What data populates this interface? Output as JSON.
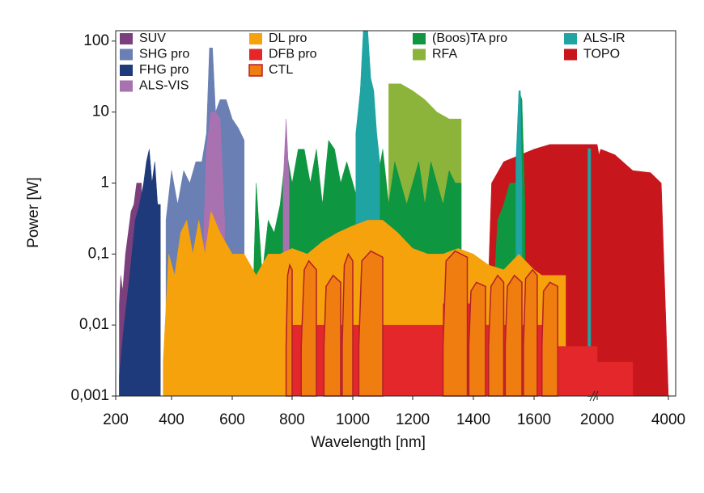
{
  "chart_data": {
    "type": "area",
    "xlabel": "Wavelength [nm]",
    "ylabel": "Power [W]",
    "yscale": "log",
    "ylim": [
      0.001,
      140
    ],
    "yticks": [
      {
        "value": 0.001,
        "label": "0,001"
      },
      {
        "value": 0.01,
        "label": "0,01"
      },
      {
        "value": 0.1,
        "label": "0,1"
      },
      1,
      10,
      100
    ],
    "xlim": [
      200,
      4000
    ],
    "xticks": [
      200,
      400,
      600,
      800,
      1000,
      1200,
      1400,
      1600,
      2000,
      4000
    ],
    "series": [
      {
        "name": "SUV",
        "color": "#7b3f7d",
        "x": [
          213,
          218,
          225,
          235,
          245,
          255,
          265,
          275,
          285,
          292
        ],
        "values": [
          0.02,
          0.05,
          0.03,
          0.1,
          0.2,
          0.4,
          0.5,
          1,
          1,
          1
        ]
      },
      {
        "name": "SHG pro",
        "color": "#6a7fb3",
        "x": [
          380,
          400,
          420,
          440,
          460,
          480,
          500,
          515,
          525,
          535,
          545,
          560,
          580,
          600,
          620,
          640
        ],
        "values": [
          0.3,
          1.5,
          0.5,
          1.5,
          1,
          2,
          2,
          5,
          80,
          80,
          10,
          15,
          15,
          8,
          6,
          4
        ]
      },
      {
        "name": "FHG pro",
        "color": "#1f3a7a",
        "x": [
          213,
          230,
          250,
          270,
          285,
          300,
          310,
          320,
          330,
          340,
          350,
          360
        ],
        "values": [
          0.002,
          0.01,
          0.05,
          0.3,
          0.5,
          1,
          2,
          3,
          1,
          2,
          0.5,
          0.5
        ]
      },
      {
        "name": "ALS-VIS",
        "color": "#a872b0",
        "x": [
          500,
          515,
          530,
          545,
          560,
          575,
          null,
          770,
          780,
          790
        ],
        "values": [
          0.03,
          3,
          10,
          10,
          8,
          0.3,
          null,
          1,
          8,
          1
        ]
      },
      {
        "name": "DL pro",
        "color": "#f5a20c",
        "x": [
          370,
          390,
          410,
          430,
          450,
          470,
          490,
          510,
          530,
          560,
          600,
          640,
          680,
          720,
          760,
          800,
          850,
          900,
          950,
          1000,
          1050,
          1100,
          1150,
          1200,
          1250,
          1300,
          1350,
          1400,
          1450,
          1500,
          1550,
          1600,
          1650,
          1700,
          1750,
          1800
        ],
        "values": [
          0.003,
          0.1,
          0.05,
          0.2,
          0.3,
          0.1,
          0.3,
          0.1,
          0.4,
          0.2,
          0.1,
          0.1,
          0.05,
          0.1,
          0.1,
          0.12,
          0.1,
          0.15,
          0.2,
          0.25,
          0.3,
          0.3,
          0.2,
          0.12,
          0.1,
          0.1,
          0.12,
          0.1,
          0.07,
          0.06,
          0.1,
          0.06,
          0.05,
          0.05,
          0.05,
          0.05
        ]
      },
      {
        "name": "DFB pro",
        "color": "#e3272a",
        "x": [
          780,
          1300,
          1300,
          1400,
          1400,
          1750,
          1750,
          2000,
          2000,
          3000
        ],
        "values": [
          0.01,
          0.01,
          0.02,
          0.02,
          0.01,
          0.01,
          0.005,
          0.005,
          0.003,
          0.003
        ]
      },
      {
        "name": "CTL",
        "color": "#f07d10",
        "stroke": "#b4202a",
        "x": [
          780,
          785,
          792,
          800,
          null,
          830,
          840,
          855,
          880,
          null,
          905,
          912,
          935,
          960,
          null,
          965,
          972,
          985,
          1000,
          null,
          1020,
          1030,
          1060,
          1100,
          null,
          1300,
          1310,
          1340,
          1380,
          null,
          1385,
          1392,
          1410,
          1440,
          null,
          1450,
          1458,
          1480,
          1500,
          null,
          1505,
          1512,
          1535,
          1560,
          null,
          1565,
          1572,
          1595,
          1620,
          null,
          1650,
          1660,
          1700,
          1750
        ],
        "values": [
          0.005,
          0.05,
          0.07,
          0.06,
          null,
          0.005,
          0.06,
          0.08,
          0.06,
          null,
          0.005,
          0.035,
          0.05,
          0.04,
          null,
          0.005,
          0.07,
          0.1,
          0.08,
          null,
          0.005,
          0.08,
          0.11,
          0.09,
          null,
          0.005,
          0.08,
          0.11,
          0.09,
          null,
          0.005,
          0.03,
          0.04,
          0.035,
          null,
          0.005,
          0.035,
          0.05,
          0.04,
          null,
          0.005,
          0.035,
          0.05,
          0.04,
          null,
          0.005,
          0.045,
          0.06,
          0.05,
          null,
          0.005,
          0.03,
          0.04,
          0.035
        ]
      },
      {
        "name": "(Boos)TA pro",
        "color": "#0f9640",
        "x": [
          670,
          680,
          700,
          720,
          740,
          760,
          780,
          800,
          820,
          840,
          860,
          880,
          900,
          920,
          940,
          960,
          980,
          1000,
          1020,
          1040,
          1060,
          1080,
          1100,
          1120,
          1140,
          1160,
          1180,
          1200,
          1220,
          1240,
          1260,
          1280,
          1300,
          1320,
          1340,
          1360,
          null,
          1470,
          1480,
          1500,
          1520,
          1540,
          1550,
          1560,
          1570
        ],
        "values": [
          0.03,
          1,
          0.05,
          0.3,
          0.2,
          0.5,
          3,
          1,
          3,
          3,
          1,
          3,
          0.5,
          4,
          3,
          1,
          2,
          1,
          0.5,
          2,
          1,
          1,
          3,
          0.5,
          2,
          1,
          0.5,
          1,
          2,
          0.5,
          2,
          1,
          0.5,
          1.5,
          1,
          1,
          null,
          0.05,
          0.3,
          0.5,
          1,
          1,
          20,
          15,
          0.5
        ]
      },
      {
        "name": "RFA",
        "color": "#8cb43a",
        "x": [
          1120,
          1160,
          1200,
          1240,
          1280,
          1320,
          1360
        ],
        "values": [
          25,
          25,
          20,
          15,
          10,
          8,
          8
        ]
      },
      {
        "name": "ALS-IR",
        "color": "#1fa3a3",
        "x": [
          1010,
          1025,
          1035,
          1050,
          1060,
          1070,
          1080,
          1090,
          null,
          1540,
          1550,
          1555,
          1560,
          null,
          1945,
          1955
        ],
        "values": [
          5,
          20,
          140,
          140,
          30,
          20,
          5,
          2,
          null,
          2,
          20,
          20,
          1,
          null,
          3,
          3
        ]
      },
      {
        "name": "TOPO",
        "color": "#c8161d",
        "x": [
          1450,
          1460,
          1500,
          1600,
          1700,
          1800,
          1900,
          2000,
          2050,
          2100,
          2500,
          3000,
          3500,
          3800,
          4000
        ],
        "values": [
          0.05,
          1,
          2,
          3,
          3.5,
          3.5,
          3.5,
          3.5,
          2.5,
          3,
          2.5,
          1.5,
          1.4,
          1,
          0.001
        ]
      }
    ]
  }
}
